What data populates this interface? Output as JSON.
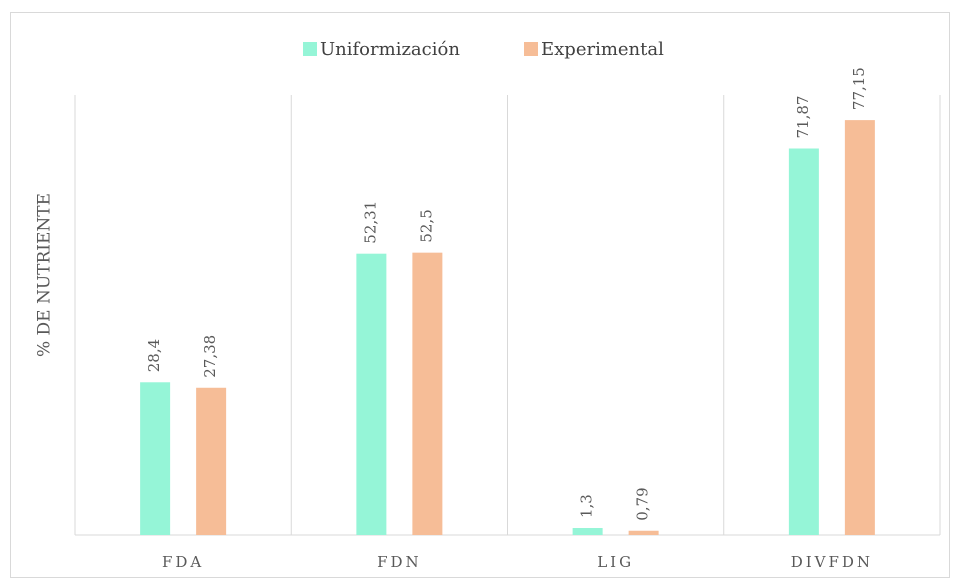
{
  "chart_data": {
    "type": "bar",
    "y_label": "% DE NUTRIENTE",
    "categories": [
      "FDA",
      "FDN",
      "LIG",
      "DIVFDN"
    ],
    "series": [
      {
        "name": "Uniformización",
        "color": "#95f5d7",
        "values": [
          28.4,
          52.31,
          1.3,
          71.87
        ],
        "value_labels": [
          "28,4",
          "52,31",
          "1,3",
          "71,87"
        ]
      },
      {
        "name": "Experimental",
        "color": "#f6bd97",
        "values": [
          27.38,
          52.5,
          0.79,
          77.15
        ],
        "value_labels": [
          "27,38",
          "52,5",
          "0,79",
          "77,15"
        ]
      }
    ],
    "ylim": [
      0,
      90
    ],
    "legend": "top"
  }
}
